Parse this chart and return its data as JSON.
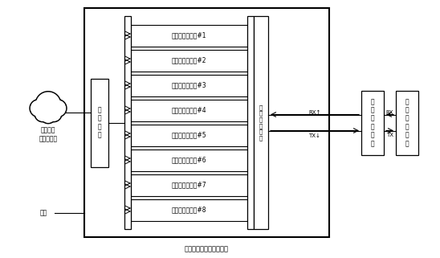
{
  "bg_color": "#ffffff",
  "title": "卫星物联网网关站组成图",
  "cloud_label": "地面网络\n（互联网）",
  "power_label": "电源",
  "network_module_label": "网\n络\n模\n块",
  "freq_router_label": "射\n频\n分\n合\n路\n器",
  "sat_rf_label": "卫\n星\n射\n频\n单\n元",
  "sat_comm_label": "卫\n星\n通\n信\n天\n线",
  "gateway_modules": [
    "多信道网关模块#1",
    "多信道网关模块#2",
    "多信道网关模块#3",
    "多信道网关模块#4",
    "多信道网关模块#5",
    "多信道网关模块#6",
    "多信道网关模块#7",
    "多信道网关模块#8"
  ],
  "rx1_label": "RX↑",
  "tx1_label": "TX↓",
  "rx2_label": "RX",
  "tx2_label": "TX",
  "figw": 5.48,
  "figh": 3.21,
  "dpi": 100
}
